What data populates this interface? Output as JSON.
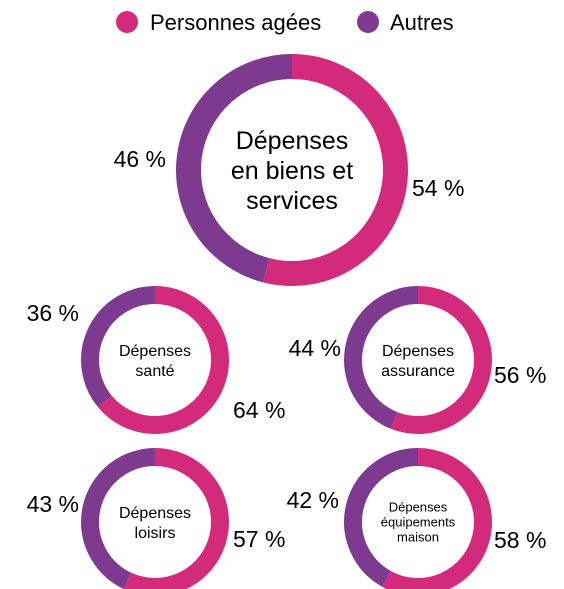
{
  "colors": {
    "personnes_agees": "#d42a7c",
    "autres": "#7d3a8e"
  },
  "legend": {
    "items": [
      {
        "label": "Personnes agées",
        "color": "#d42a7c"
      },
      {
        "label": "Autres",
        "color": "#7d3a8e"
      }
    ]
  },
  "chart_data": [
    {
      "type": "pie",
      "title_lines": [
        "Dépenses",
        "en biens et",
        "services"
      ],
      "slices": [
        {
          "name": "Personnes agées",
          "value": 54,
          "label": "54 %"
        },
        {
          "name": "Autres",
          "value": 46,
          "label": "46 %"
        }
      ]
    },
    {
      "type": "pie",
      "title_lines": [
        "Dépenses",
        "santé"
      ],
      "slices": [
        {
          "name": "Personnes agées",
          "value": 64,
          "label": "64 %"
        },
        {
          "name": "Autres",
          "value": 36,
          "label": "36 %"
        }
      ]
    },
    {
      "type": "pie",
      "title_lines": [
        "Dépenses",
        "assurance"
      ],
      "slices": [
        {
          "name": "Personnes agées",
          "value": 56,
          "label": "56 %"
        },
        {
          "name": "Autres",
          "value": 44,
          "label": "44 %"
        }
      ]
    },
    {
      "type": "pie",
      "title_lines": [
        "Dépenses",
        "loisirs"
      ],
      "slices": [
        {
          "name": "Personnes agées",
          "value": 57,
          "label": "57 %"
        },
        {
          "name": "Autres",
          "value": 43,
          "label": "43 %"
        }
      ]
    },
    {
      "type": "pie",
      "title_lines": [
        "Dépenses",
        "équipements",
        "maison"
      ],
      "slices": [
        {
          "name": "Personnes agées",
          "value": 58,
          "label": "58 %"
        },
        {
          "name": "Autres",
          "value": 42,
          "label": "42 %"
        }
      ]
    }
  ]
}
